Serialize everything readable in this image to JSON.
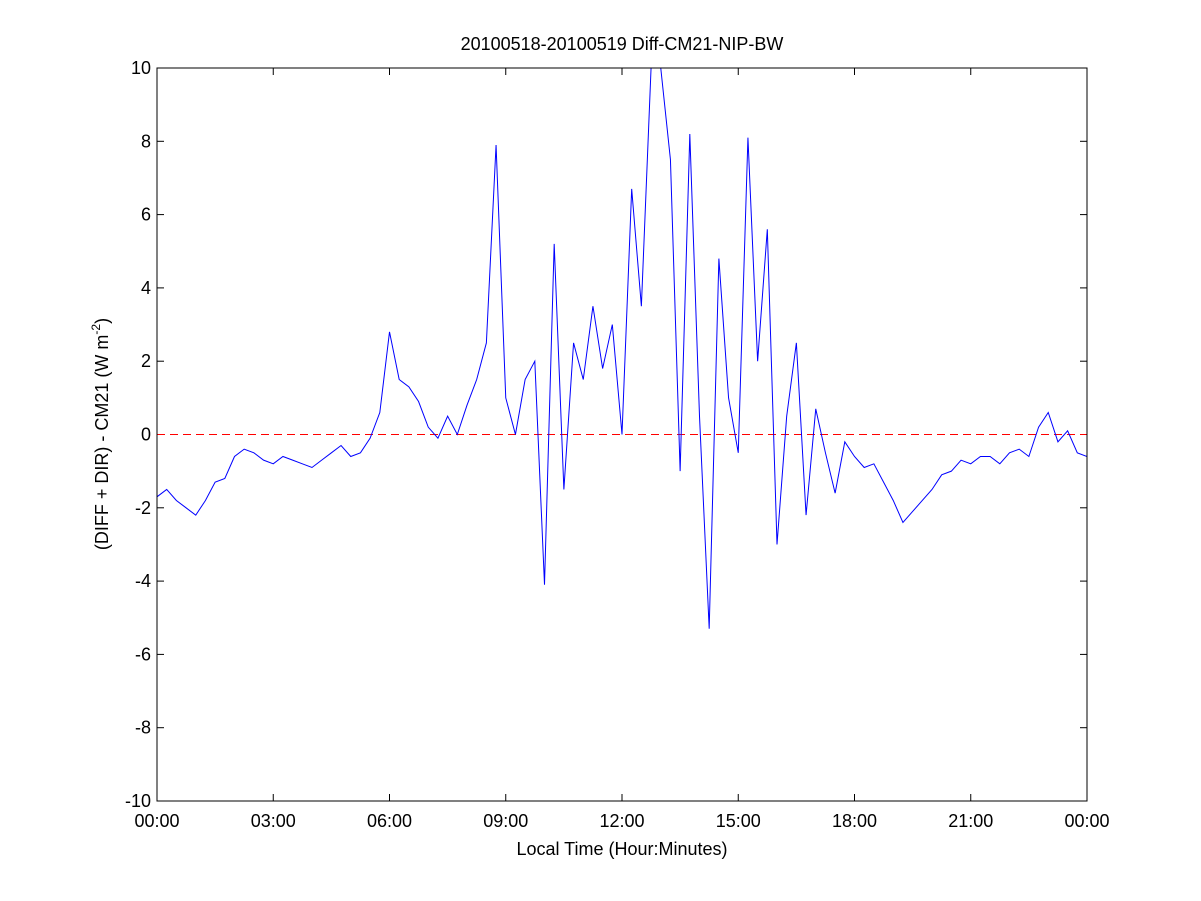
{
  "chart_data": {
    "type": "line",
    "title": "20100518-20100519 Diff-CM21-NIP-BW",
    "xlabel": "Local Time (Hour:Minutes)",
    "ylabel": [
      "(DIFF + DIR) - CM21 (W m",
      "-2",
      ")"
    ],
    "xlim": [
      0,
      24
    ],
    "xticks": [
      {
        "value": 0,
        "label": "00:00"
      },
      {
        "value": 3,
        "label": "03:00"
      },
      {
        "value": 6,
        "label": "06:00"
      },
      {
        "value": 9,
        "label": "09:00"
      },
      {
        "value": 12,
        "label": "12:00"
      },
      {
        "value": 15,
        "label": "15:00"
      },
      {
        "value": 18,
        "label": "18:00"
      },
      {
        "value": 21,
        "label": "21:00"
      },
      {
        "value": 24,
        "label": "00:00"
      }
    ],
    "ylim": [
      -10,
      10
    ],
    "yticks": [
      -10,
      -8,
      -6,
      -4,
      -2,
      0,
      2,
      4,
      6,
      8,
      10
    ],
    "reference_line": {
      "value": 0,
      "color": "#ff0000"
    },
    "x": [
      0,
      0.25,
      0.5,
      0.75,
      1,
      1.25,
      1.5,
      1.75,
      2,
      2.25,
      2.5,
      2.75,
      3,
      3.25,
      3.5,
      3.75,
      4,
      4.25,
      4.5,
      4.75,
      5,
      5.25,
      5.5,
      5.75,
      6,
      6.25,
      6.5,
      6.75,
      7,
      7.25,
      7.5,
      7.75,
      8,
      8.25,
      8.5,
      8.75,
      9,
      9.25,
      9.5,
      9.75,
      10,
      10.25,
      10.5,
      10.75,
      11,
      11.25,
      11.5,
      11.75,
      12,
      12.25,
      12.5,
      12.75,
      13,
      13.25,
      13.5,
      13.75,
      14,
      14.25,
      14.5,
      14.75,
      15,
      15.25,
      15.5,
      15.75,
      16,
      16.25,
      16.5,
      16.75,
      17,
      17.25,
      17.5,
      17.75,
      18,
      18.25,
      18.5,
      18.75,
      19,
      19.25,
      19.5,
      19.75,
      20,
      20.25,
      20.5,
      20.75,
      21,
      21.25,
      21.5,
      21.75,
      22,
      22.25,
      22.5,
      22.75,
      23,
      23.25,
      23.5,
      23.75,
      24
    ],
    "series": [
      {
        "color": "#0000ff",
        "values": [
          -1.7,
          -1.5,
          -1.8,
          -2.0,
          -2.2,
          -1.8,
          -1.3,
          -1.2,
          -0.6,
          -0.4,
          -0.5,
          -0.7,
          -0.8,
          -0.6,
          -0.7,
          -0.8,
          -0.9,
          -0.7,
          -0.5,
          -0.3,
          -0.6,
          -0.5,
          -0.1,
          0.6,
          2.8,
          1.5,
          1.3,
          0.9,
          0.2,
          -0.1,
          0.5,
          0.0,
          0.8,
          1.5,
          2.5,
          7.9,
          1.0,
          0.0,
          1.5,
          2.0,
          -4.1,
          5.2,
          -1.5,
          2.5,
          1.5,
          3.5,
          1.8,
          3.0,
          0.0,
          6.7,
          3.5,
          10,
          10,
          7.5,
          -1.0,
          8.2,
          0.5,
          -5.3,
          4.8,
          1.0,
          -0.5,
          8.1,
          2.0,
          5.6,
          -3.0,
          0.5,
          2.5,
          -2.2,
          0.7,
          -0.5,
          -1.6,
          -0.2,
          -0.6,
          -0.9,
          -0.8,
          -1.3,
          -1.8,
          -2.4,
          -2.1,
          -1.8,
          -1.5,
          -1.1,
          -1.0,
          -0.7,
          -0.8,
          -0.6,
          -0.6,
          -0.8,
          -0.5,
          -0.4,
          -0.6,
          0.2,
          0.6,
          -0.2,
          0.1,
          -0.5,
          -0.6
        ]
      }
    ]
  }
}
